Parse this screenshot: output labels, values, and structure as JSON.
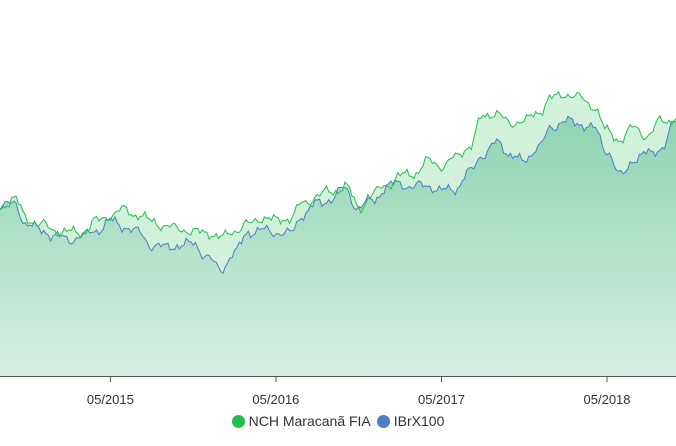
{
  "chart_data": {
    "type": "area",
    "x_ticks": [
      "05/2015",
      "05/2016",
      "05/2017",
      "05/2018"
    ],
    "x_range": [
      "2014-09",
      "2018-10"
    ],
    "y_range": [
      0,
      100
    ],
    "series": [
      {
        "name": "NCH Maracanã FIA",
        "color": "#22c04a",
        "fill": "#c9ecd3",
        "points": [
          [
            "2014-09",
            45
          ],
          [
            "2014-10",
            47
          ],
          [
            "2014-11",
            42
          ],
          [
            "2014-12",
            40
          ],
          [
            "2015-01",
            39
          ],
          [
            "2015-02",
            38
          ],
          [
            "2015-03",
            38.5
          ],
          [
            "2015-04",
            41
          ],
          [
            "2015-05",
            43
          ],
          [
            "2015-06",
            44
          ],
          [
            "2015-07",
            43
          ],
          [
            "2015-08",
            41
          ],
          [
            "2015-09",
            40
          ],
          [
            "2015-10",
            39
          ],
          [
            "2015-11",
            38.5
          ],
          [
            "2015-12",
            38
          ],
          [
            "2016-01",
            37
          ],
          [
            "2016-02",
            38.5
          ],
          [
            "2016-03",
            40.5
          ],
          [
            "2016-04",
            42
          ],
          [
            "2016-05",
            41.5
          ],
          [
            "2016-06",
            42
          ],
          [
            "2016-07",
            46
          ],
          [
            "2016-08",
            48
          ],
          [
            "2016-09",
            49
          ],
          [
            "2016-10",
            50.5
          ],
          [
            "2016-11",
            45
          ],
          [
            "2016-12",
            48
          ],
          [
            "2017-01",
            51
          ],
          [
            "2017-02",
            53
          ],
          [
            "2017-03",
            54
          ],
          [
            "2017-04",
            57
          ],
          [
            "2017-05",
            56
          ],
          [
            "2017-06",
            58
          ],
          [
            "2017-07",
            61
          ],
          [
            "2017-08",
            69
          ],
          [
            "2017-09",
            70
          ],
          [
            "2017-10",
            67
          ],
          [
            "2017-11",
            68
          ],
          [
            "2017-12",
            70
          ],
          [
            "2018-01",
            74
          ],
          [
            "2018-02",
            75
          ],
          [
            "2018-03",
            74
          ],
          [
            "2018-04",
            72
          ],
          [
            "2018-05",
            65
          ],
          [
            "2018-06",
            63
          ],
          [
            "2018-07",
            66
          ],
          [
            "2018-08",
            64
          ],
          [
            "2018-09",
            68
          ],
          [
            "2018-10",
            68.5
          ]
        ]
      },
      {
        "name": "IBrX100",
        "color": "#4a7fc1",
        "fill": "#a8dcc3",
        "points": [
          [
            "2014-09",
            45
          ],
          [
            "2014-10",
            46
          ],
          [
            "2014-11",
            40
          ],
          [
            "2014-12",
            39
          ],
          [
            "2015-01",
            37
          ],
          [
            "2015-02",
            36.5
          ],
          [
            "2015-03",
            37
          ],
          [
            "2015-04",
            39
          ],
          [
            "2015-05",
            41
          ],
          [
            "2015-06",
            40
          ],
          [
            "2015-07",
            38
          ],
          [
            "2015-08",
            35
          ],
          [
            "2015-09",
            34
          ],
          [
            "2015-10",
            35
          ],
          [
            "2015-11",
            35
          ],
          [
            "2015-12",
            32
          ],
          [
            "2016-01",
            28
          ],
          [
            "2016-02",
            33
          ],
          [
            "2016-03",
            38
          ],
          [
            "2016-04",
            39
          ],
          [
            "2016-05",
            38
          ],
          [
            "2016-06",
            38
          ],
          [
            "2016-07",
            43
          ],
          [
            "2016-08",
            46
          ],
          [
            "2016-09",
            47
          ],
          [
            "2016-10",
            50
          ],
          [
            "2016-11",
            44.5
          ],
          [
            "2016-12",
            47
          ],
          [
            "2017-01",
            50
          ],
          [
            "2017-02",
            51.5
          ],
          [
            "2017-03",
            50
          ],
          [
            "2017-04",
            51
          ],
          [
            "2017-05",
            49
          ],
          [
            "2017-06",
            50
          ],
          [
            "2017-07",
            54
          ],
          [
            "2017-08",
            59
          ],
          [
            "2017-09",
            62
          ],
          [
            "2017-10",
            59
          ],
          [
            "2017-11",
            57
          ],
          [
            "2017-12",
            61
          ],
          [
            "2018-01",
            66
          ],
          [
            "2018-02",
            68
          ],
          [
            "2018-03",
            67
          ],
          [
            "2018-04",
            66
          ],
          [
            "2018-05",
            60
          ],
          [
            "2018-06",
            53
          ],
          [
            "2018-07",
            58
          ],
          [
            "2018-08",
            59
          ],
          [
            "2018-09",
            61
          ],
          [
            "2018-10",
            67.5
          ]
        ]
      }
    ],
    "grid": false,
    "legend_position": "bottom-center"
  }
}
